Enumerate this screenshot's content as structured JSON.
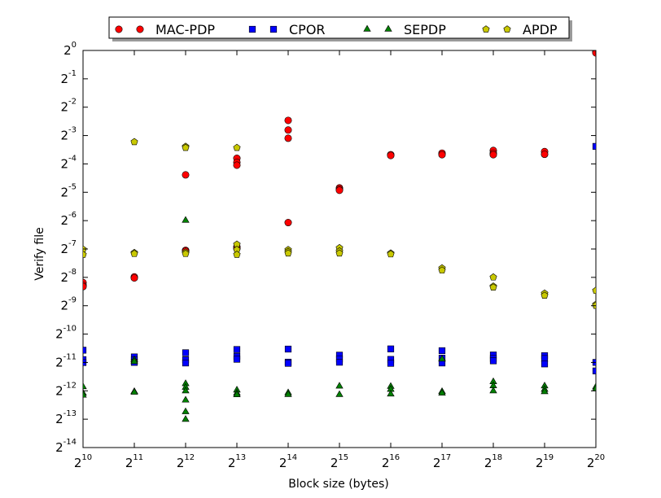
{
  "chart_data": {
    "type": "scatter",
    "title": "",
    "xlabel": "Block size (bytes)",
    "ylabel": "Verify file",
    "x_scale": "log2",
    "y_scale": "log2",
    "xlim": [
      1024,
      1048576
    ],
    "ylim": [
      6.103515625e-05,
      1
    ],
    "xticks": [
      {
        "base": "2",
        "exp": "10"
      },
      {
        "base": "2",
        "exp": "11"
      },
      {
        "base": "2",
        "exp": "12"
      },
      {
        "base": "2",
        "exp": "13"
      },
      {
        "base": "2",
        "exp": "14"
      },
      {
        "base": "2",
        "exp": "15"
      },
      {
        "base": "2",
        "exp": "16"
      },
      {
        "base": "2",
        "exp": "17"
      },
      {
        "base": "2",
        "exp": "18"
      },
      {
        "base": "2",
        "exp": "19"
      },
      {
        "base": "2",
        "exp": "20"
      }
    ],
    "yticks": [
      {
        "base": "2",
        "exp": "0"
      },
      {
        "base": "2",
        "exp": "-1"
      },
      {
        "base": "2",
        "exp": "-2"
      },
      {
        "base": "2",
        "exp": "-3"
      },
      {
        "base": "2",
        "exp": "-4"
      },
      {
        "base": "2",
        "exp": "-5"
      },
      {
        "base": "2",
        "exp": "-6"
      },
      {
        "base": "2",
        "exp": "-7"
      },
      {
        "base": "2",
        "exp": "-8"
      },
      {
        "base": "2",
        "exp": "-9"
      },
      {
        "base": "2",
        "exp": "-10"
      },
      {
        "base": "2",
        "exp": "-11"
      },
      {
        "base": "2",
        "exp": "-12"
      },
      {
        "base": "2",
        "exp": "-13"
      },
      {
        "base": "2",
        "exp": "-14"
      }
    ],
    "legend_position": "top-center",
    "grid": false,
    "series": [
      {
        "name": "MAC-PDP",
        "marker": "circle",
        "color": "#ff0000",
        "points": [
          [
            1024,
            0.00344
          ],
          [
            1024,
            0.00322
          ],
          [
            1024,
            0.00312
          ],
          [
            2048,
            0.00395
          ],
          [
            2048,
            0.00385
          ],
          [
            4096,
            0.00757
          ],
          [
            4096,
            0.00741
          ],
          [
            4096,
            0.0478
          ],
          [
            8192,
            0.0082
          ],
          [
            8192,
            0.0079
          ],
          [
            8192,
            0.0717
          ],
          [
            8192,
            0.0651
          ],
          [
            8192,
            0.0606
          ],
          [
            16384,
            0.0149
          ],
          [
            16384,
            0.117
          ],
          [
            16384,
            0.143
          ],
          [
            16384,
            0.181
          ],
          [
            32768,
            0.0348
          ],
          [
            32768,
            0.0338
          ],
          [
            32768,
            0.0328
          ],
          [
            65536,
            0.0783
          ],
          [
            65536,
            0.0768
          ],
          [
            131072,
            0.0813
          ],
          [
            131072,
            0.0783
          ],
          [
            262144,
            0.0868
          ],
          [
            262144,
            0.0813
          ],
          [
            262144,
            0.0783
          ],
          [
            524288,
            0.0845
          ],
          [
            524288,
            0.079
          ],
          [
            1048576,
            0.962
          ],
          [
            1048576,
            0.942
          ]
        ]
      },
      {
        "name": "CPOR",
        "marker": "square",
        "color": "#0000ff",
        "points": [
          [
            1024,
            0.000659
          ],
          [
            1024,
            0.000523
          ],
          [
            1024,
            0.000487
          ],
          [
            2048,
            0.000559
          ],
          [
            2048,
            0.000522
          ],
          [
            2048,
            0.000489
          ],
          [
            4096,
            0.000619
          ],
          [
            4096,
            0.000522
          ],
          [
            4096,
            0.000482
          ],
          [
            8192,
            0.00067
          ],
          [
            8192,
            0.000567
          ],
          [
            8192,
            0.000528
          ],
          [
            16384,
            0.000677
          ],
          [
            16384,
            0.000492
          ],
          [
            16384,
            0.000478
          ],
          [
            32768,
            0.000584
          ],
          [
            32768,
            0.000533
          ],
          [
            32768,
            0.000491
          ],
          [
            65536,
            0.00068
          ],
          [
            65536,
            0.000526
          ],
          [
            65536,
            0.000478
          ],
          [
            131072,
            0.000651
          ],
          [
            131072,
            0.000542
          ],
          [
            131072,
            0.000482
          ],
          [
            262144,
            0.000586
          ],
          [
            262144,
            0.000538
          ],
          [
            262144,
            0.000508
          ],
          [
            524288,
            0.000576
          ],
          [
            524288,
            0.000537
          ],
          [
            524288,
            0.000471
          ],
          [
            1048576,
            0.0959
          ],
          [
            1048576,
            0.000489
          ],
          [
            1048576,
            0.000397
          ]
        ]
      },
      {
        "name": "SEPDP",
        "marker": "triangle",
        "color": "#008000",
        "points": [
          [
            1024,
            0.000269
          ],
          [
            1024,
            0.00023
          ],
          [
            1024,
            0.000219
          ],
          [
            2048,
            0.000519
          ],
          [
            2048,
            0.000497
          ],
          [
            2048,
            0.000239
          ],
          [
            2048,
            0.000235
          ],
          [
            4096,
            0.0157
          ],
          [
            4096,
            0.00029
          ],
          [
            4096,
            0.000265
          ],
          [
            4096,
            0.000243
          ],
          [
            4096,
            0.000194
          ],
          [
            4096,
            0.000146
          ],
          [
            4096,
            0.000121
          ],
          [
            8192,
            0.000248
          ],
          [
            8192,
            0.00023
          ],
          [
            8192,
            0.000221
          ],
          [
            16384,
            0.000232
          ],
          [
            16384,
            0.000222
          ],
          [
            32768,
            0.000273
          ],
          [
            32768,
            0.000222
          ],
          [
            65536,
            0.000271
          ],
          [
            65536,
            0.000252
          ],
          [
            65536,
            0.000225
          ],
          [
            131072,
            0.000529
          ],
          [
            131072,
            0.000239
          ],
          [
            131072,
            0.00023
          ],
          [
            262144,
            0.000304
          ],
          [
            262144,
            0.000275
          ],
          [
            262144,
            0.000243
          ],
          [
            524288,
            0.000274
          ],
          [
            524288,
            0.000252
          ],
          [
            524288,
            0.000238
          ],
          [
            1048576,
            0.000268
          ],
          [
            1048576,
            0.000256
          ]
        ]
      },
      {
        "name": "APDP",
        "marker": "pentagon",
        "color": "#c8c800",
        "points": [
          [
            1024,
            0.00774
          ],
          [
            1024,
            0.00681
          ],
          [
            2048,
            0.107
          ],
          [
            2048,
            0.00713
          ],
          [
            2048,
            0.00696
          ],
          [
            4096,
            0.0955
          ],
          [
            4096,
            0.0929
          ],
          [
            4096,
            0.0072
          ],
          [
            4096,
            0.00696
          ],
          [
            8192,
            0.0928
          ],
          [
            8192,
            0.00874
          ],
          [
            8192,
            0.00768
          ],
          [
            8192,
            0.00681
          ],
          [
            16384,
            0.00766
          ],
          [
            16384,
            0.00732
          ],
          [
            16384,
            0.00704
          ],
          [
            32768,
            0.00802
          ],
          [
            32768,
            0.00741
          ],
          [
            32768,
            0.00704
          ],
          [
            65536,
            0.00704
          ],
          [
            65536,
            0.00689
          ],
          [
            131072,
            0.00489
          ],
          [
            131072,
            0.00464
          ],
          [
            262144,
            0.00392
          ],
          [
            262144,
            0.00314
          ],
          [
            262144,
            0.00306
          ],
          [
            524288,
            0.00264
          ],
          [
            524288,
            0.00251
          ],
          [
            1048576,
            0.00283
          ],
          [
            1048576,
            0.00201
          ],
          [
            1048576,
            0.00196
          ]
        ]
      }
    ]
  }
}
